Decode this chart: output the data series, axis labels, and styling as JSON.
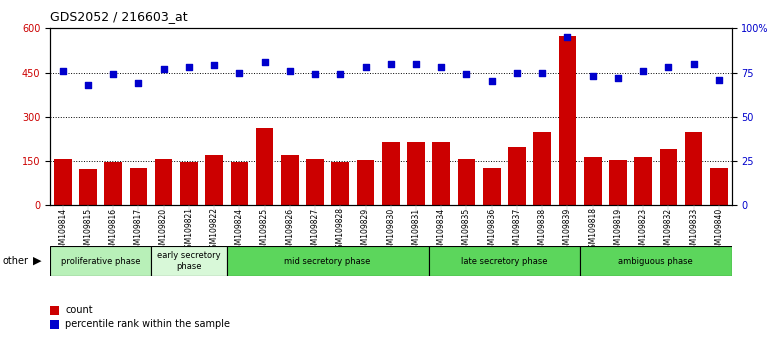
{
  "title": "GDS2052 / 216603_at",
  "samples": [
    "GSM109814",
    "GSM109815",
    "GSM109816",
    "GSM109817",
    "GSM109820",
    "GSM109821",
    "GSM109822",
    "GSM109824",
    "GSM109825",
    "GSM109826",
    "GSM109827",
    "GSM109828",
    "GSM109829",
    "GSM109830",
    "GSM109831",
    "GSM109834",
    "GSM109835",
    "GSM109836",
    "GSM109837",
    "GSM109838",
    "GSM109839",
    "GSM109818",
    "GSM109819",
    "GSM109823",
    "GSM109832",
    "GSM109833",
    "GSM109840"
  ],
  "counts": [
    158,
    122,
    147,
    128,
    158,
    148,
    172,
    148,
    262,
    170,
    158,
    148,
    152,
    215,
    215,
    215,
    158,
    128,
    198,
    250,
    575,
    165,
    152,
    165,
    192,
    250,
    128
  ],
  "percentiles": [
    76,
    68,
    74,
    69,
    77,
    78,
    79,
    75,
    81,
    76,
    74,
    74,
    78,
    80,
    80,
    78,
    74,
    70,
    75,
    75,
    95,
    73,
    72,
    76,
    78,
    80,
    71
  ],
  "phases": [
    {
      "label": "proliferative phase",
      "start": 0,
      "end": 4,
      "color": "#b8f0b8"
    },
    {
      "label": "early secretory\nphase",
      "start": 4,
      "end": 7,
      "color": "#d8f8d8"
    },
    {
      "label": "mid secretory phase",
      "start": 7,
      "end": 15,
      "color": "#5cd65c"
    },
    {
      "label": "late secretory phase",
      "start": 15,
      "end": 21,
      "color": "#5cd65c"
    },
    {
      "label": "ambiguous phase",
      "start": 21,
      "end": 27,
      "color": "#5cd65c"
    }
  ],
  "bar_color": "#CC0000",
  "dot_color": "#0000CC",
  "left_ylim": [
    0,
    600
  ],
  "right_ylim": [
    0,
    100
  ],
  "left_yticks": [
    0,
    150,
    300,
    450,
    600
  ],
  "right_yticks": [
    0,
    25,
    50,
    75,
    100
  ],
  "right_yticklabels": [
    "0",
    "25",
    "50",
    "75",
    "100%"
  ]
}
